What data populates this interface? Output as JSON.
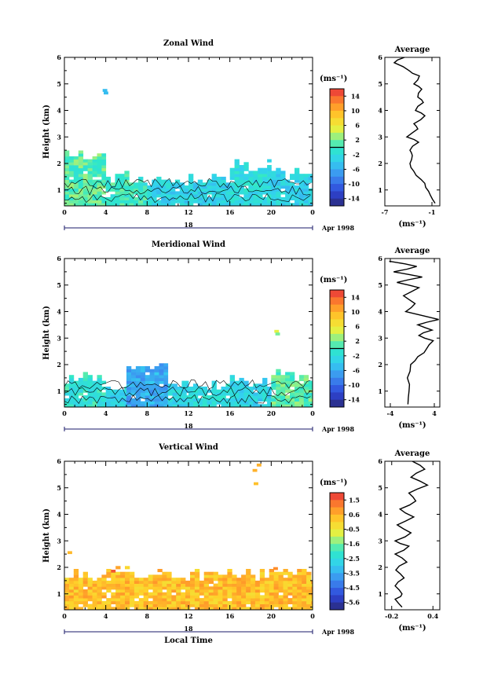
{
  "panels": [
    {
      "title": "Zonal Wind",
      "ylabel": "Height (km)",
      "units": "(ms⁻¹)",
      "xticks": [
        "0",
        "4",
        "8",
        "12",
        "16",
        "20",
        "0"
      ],
      "date_tick": "18",
      "date_label": "Apr 1998",
      "xlabel": "",
      "yticks": [
        "1",
        "2",
        "3",
        "4",
        "5",
        "6"
      ],
      "cbar_ticks": [
        "14",
        "10",
        "6",
        "2",
        "-2",
        "-6",
        "-10",
        "-14"
      ],
      "avg_title": "Average",
      "avg_xticks": [
        "-7",
        "-1"
      ],
      "avg_units": "(ms⁻¹)"
    },
    {
      "title": "Meridional Wind",
      "ylabel": "Height (km)",
      "units": "(ms⁻¹)",
      "xticks": [
        "0",
        "4",
        "8",
        "12",
        "16",
        "20",
        "0"
      ],
      "date_tick": "18",
      "date_label": "Apr 1998",
      "xlabel": "",
      "yticks": [
        "1",
        "2",
        "3",
        "4",
        "5",
        "6"
      ],
      "cbar_ticks": [
        "14",
        "10",
        "6",
        "2",
        "-2",
        "-6",
        "-10",
        "-14"
      ],
      "avg_title": "Average",
      "avg_xticks": [
        "-4",
        "4"
      ],
      "avg_units": "(ms⁻¹)"
    },
    {
      "title": "Vertical Wind",
      "ylabel": "Height (km)",
      "units": "(ms⁻¹)",
      "xticks": [
        "0",
        "4",
        "8",
        "12",
        "16",
        "20",
        "0"
      ],
      "date_tick": "18",
      "date_label": "Apr 1998",
      "xlabel": "Local Time",
      "yticks": [
        "1",
        "2",
        "3",
        "4",
        "5",
        "6"
      ],
      "cbar_ticks": [
        "1.5",
        "0.6",
        "-0.5",
        "-1.6",
        "-2.5",
        "-3.5",
        "-4.5",
        "-5.6"
      ],
      "avg_title": "Average",
      "avg_xticks": [
        "-0.2",
        "0.4"
      ],
      "avg_units": "(ms⁻¹)"
    }
  ],
  "chart_data": [
    {
      "type": "heatmap",
      "title": "Zonal Wind",
      "xlabel": "",
      "ylabel": "Height (km)",
      "xlim": [
        0,
        24
      ],
      "ylim": [
        0.4,
        6
      ],
      "colorbar_range": [
        -16,
        16
      ],
      "colorbar_units": "(ms⁻¹)",
      "date": "18 Apr 1998",
      "columns": [
        {
          "t": [
            0,
            4
          ],
          "top": 2.3,
          "v": 1
        },
        {
          "t": [
            4,
            8
          ],
          "top": 1.4,
          "v": 0
        },
        {
          "t": [
            8,
            12
          ],
          "top": 1.2,
          "v": -3
        },
        {
          "t": [
            12,
            16
          ],
          "top": 1.4,
          "v": -3
        },
        {
          "t": [
            16,
            20
          ],
          "top": 1.9,
          "v": -2
        },
        {
          "t": [
            20,
            24
          ],
          "top": 1.6,
          "v": -3
        }
      ],
      "scatter_cells": [
        {
          "t": 3.7,
          "h": 4.7,
          "v": -5
        },
        {
          "t": 3.8,
          "h": 4.6,
          "v": -5
        }
      ],
      "profile": {
        "title": "Average",
        "xlim": [
          -7,
          0
        ],
        "xticks": [
          -7,
          -1
        ],
        "height": [
          0.5,
          0.8,
          1.1,
          1.4,
          1.7,
          2.0,
          2.3,
          2.5,
          2.8,
          3.0,
          3.3,
          3.5,
          3.8,
          4.0,
          4.3,
          4.5,
          4.8,
          5.0,
          5.3,
          5.5,
          5.8,
          6.0
        ],
        "value": [
          -0.6,
          -1.2,
          -1.8,
          -2.4,
          -3.3,
          -3.8,
          -3.5,
          -3.8,
          -2.7,
          -4.2,
          -2.8,
          -3.3,
          -1.9,
          -3.1,
          -2.1,
          -2.8,
          -2.3,
          -3.3,
          -2.6,
          -3.9,
          -5.8,
          -4.5
        ]
      }
    },
    {
      "type": "heatmap",
      "title": "Meridional Wind",
      "xlabel": "",
      "ylabel": "Height (km)",
      "xlim": [
        0,
        24
      ],
      "ylim": [
        0.4,
        6
      ],
      "colorbar_range": [
        -16,
        16
      ],
      "colorbar_units": "(ms⁻¹)",
      "date": "18 Apr 1998",
      "columns": [
        {
          "t": [
            0,
            4
          ],
          "top": 1.5,
          "v": -1
        },
        {
          "t": [
            4,
            6
          ],
          "top": 1.2,
          "v": -3
        },
        {
          "t": [
            6,
            10
          ],
          "top": 1.9,
          "v": -6
        },
        {
          "t": [
            10,
            12
          ],
          "top": 1.3,
          "v": -3
        },
        {
          "t": [
            12,
            16
          ],
          "top": 1.1,
          "v": -2
        },
        {
          "t": [
            16,
            20
          ],
          "top": 1.3,
          "v": -3
        },
        {
          "t": [
            20,
            24
          ],
          "top": 1.5,
          "v": 1
        }
      ],
      "scatter_cells": [
        {
          "t": 20.3,
          "h": 3.2,
          "v": 5
        },
        {
          "t": 20.4,
          "h": 3.1,
          "v": 2
        }
      ],
      "profile": {
        "title": "Average",
        "xlim": [
          -5,
          5
        ],
        "xticks": [
          -4,
          4
        ],
        "height": [
          0.5,
          1.0,
          1.5,
          2.0,
          2.3,
          2.6,
          2.9,
          3.1,
          3.3,
          3.5,
          3.7,
          4.0,
          4.3,
          4.6,
          4.9,
          5.1,
          5.3,
          5.5,
          5.7,
          5.9
        ],
        "value": [
          -0.8,
          -0.6,
          -0.9,
          -0.3,
          1.0,
          2.6,
          3.8,
          1.2,
          3.6,
          1.0,
          4.8,
          -1.2,
          0.5,
          -1.6,
          1.2,
          -2.8,
          1.8,
          -3.4,
          0.8,
          -4.2
        ]
      }
    },
    {
      "type": "heatmap",
      "title": "Vertical Wind",
      "xlabel": "Local Time",
      "ylabel": "Height (km)",
      "xlim": [
        0,
        24
      ],
      "ylim": [
        0.4,
        6
      ],
      "colorbar_range": [
        -6,
        2
      ],
      "colorbar_units": "(ms⁻¹)",
      "date": "18 Apr 1998",
      "columns": [
        {
          "t": [
            0,
            24
          ],
          "top": 1.7,
          "v": 0.3
        }
      ],
      "scatter_cells": [
        {
          "t": 0.3,
          "h": 2.5,
          "v": 0.4
        },
        {
          "t": 4.5,
          "h": 1.8,
          "v": 1.6
        },
        {
          "t": 18.2,
          "h": 5.6,
          "v": 0.5
        },
        {
          "t": 18.6,
          "h": 5.8,
          "v": 0.5
        },
        {
          "t": 18.3,
          "h": 5.1,
          "v": 0.3
        },
        {
          "t": 20.2,
          "h": 1.9,
          "v": 1.0
        }
      ],
      "profile": {
        "title": "Average",
        "xlim": [
          -0.3,
          0.5
        ],
        "xticks": [
          -0.2,
          0.4
        ],
        "height": [
          0.5,
          0.8,
          1.0,
          1.3,
          1.6,
          1.9,
          2.2,
          2.5,
          2.8,
          3.0,
          3.3,
          3.6,
          3.9,
          4.2,
          4.5,
          4.8,
          5.1,
          5.4,
          5.7,
          6.0
        ],
        "value": [
          -0.05,
          -0.15,
          -0.05,
          -0.15,
          -0.02,
          -0.14,
          0.02,
          -0.15,
          0.05,
          -0.15,
          0.08,
          -0.12,
          0.12,
          -0.08,
          0.15,
          0.05,
          0.32,
          0.08,
          0.28,
          0.1
        ]
      }
    }
  ]
}
